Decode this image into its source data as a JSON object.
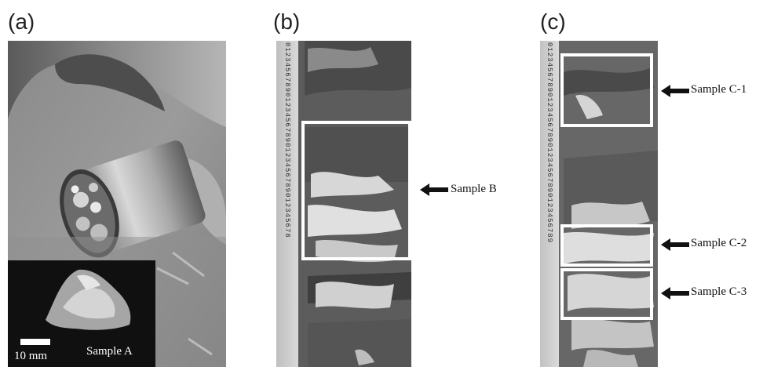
{
  "panels": [
    {
      "letter": "(a)"
    },
    {
      "letter": "(b)"
    },
    {
      "letter": "(c)"
    }
  ],
  "labels": {
    "sample_a": "Sample A",
    "scale_bar": "10 mm",
    "sample_b": "Sample B",
    "sample_c1": "Sample C-1",
    "sample_c2": "Sample C-2",
    "sample_c3": "Sample C-3"
  },
  "ruler_b": "012345678901234567890123456789012345678",
  "ruler_c": "0123456789012345678901234567890123456789"
}
